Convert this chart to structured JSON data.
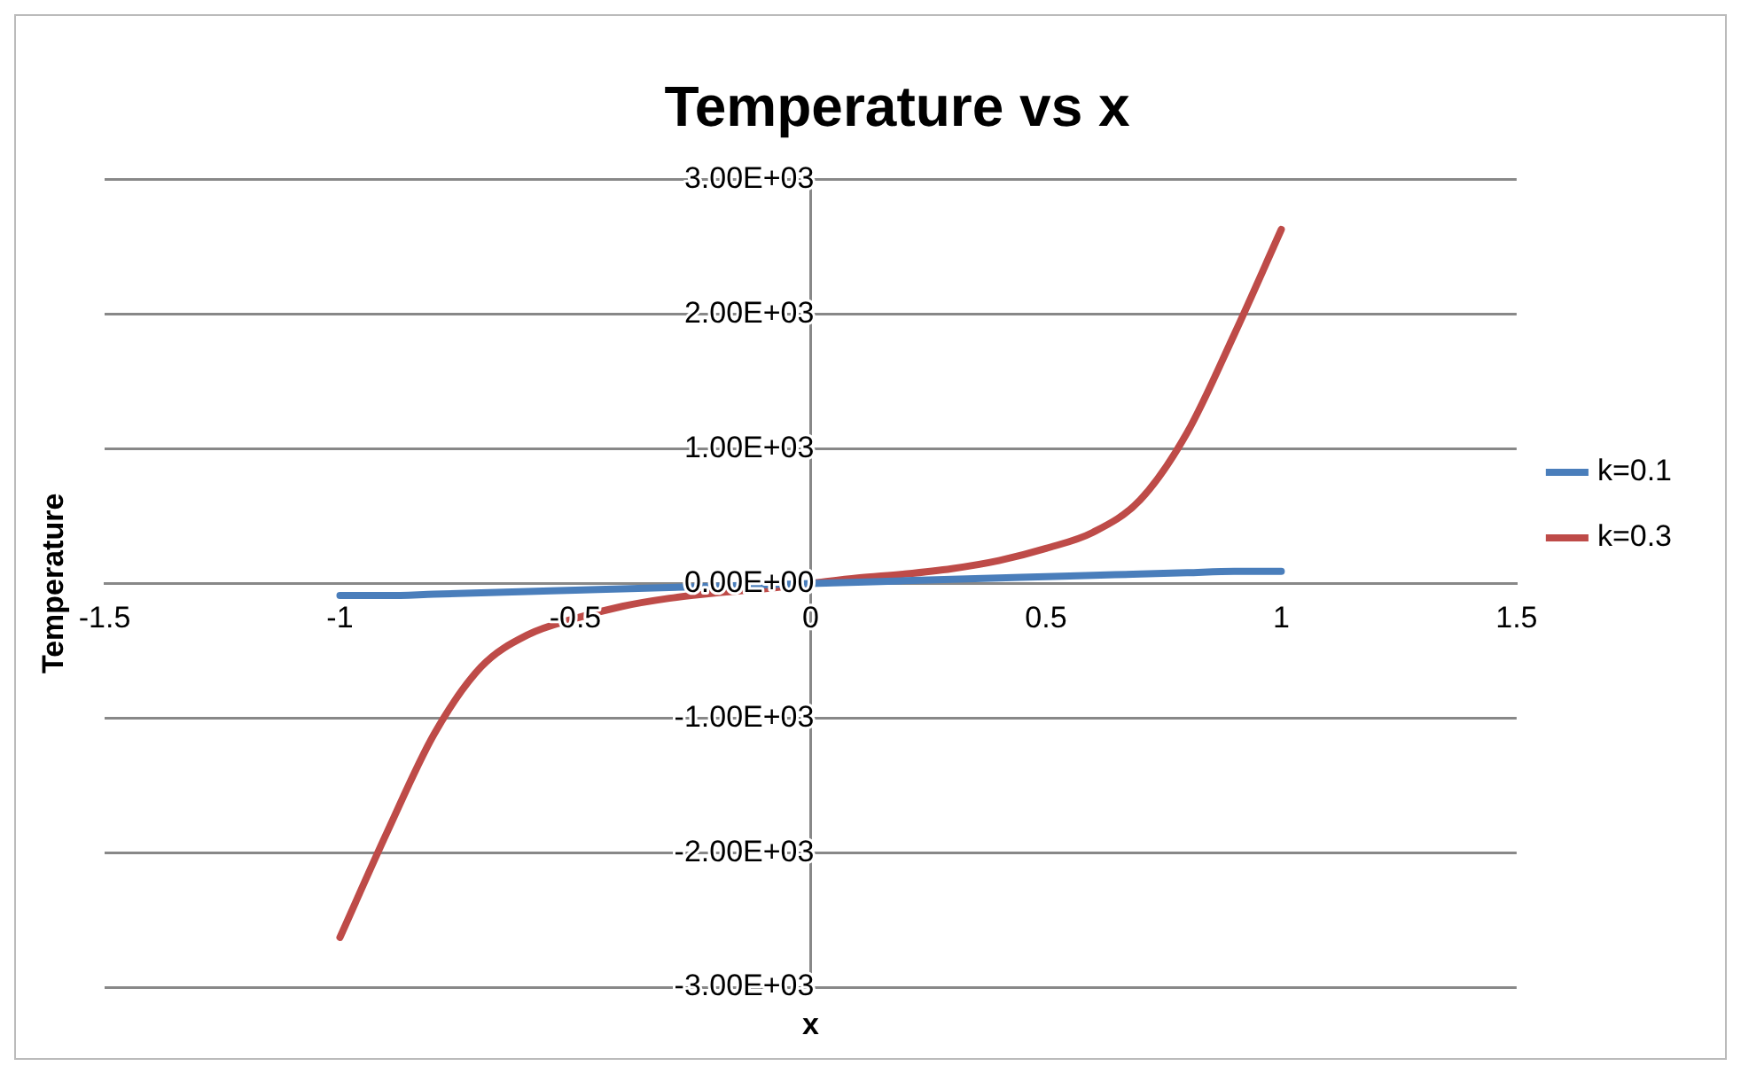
{
  "chart_data": {
    "type": "line",
    "title": "Temperature vs x",
    "xlabel": "x",
    "ylabel": "Temperature",
    "x": [
      -1,
      -0.9,
      -0.8,
      -0.7,
      -0.6,
      -0.5,
      -0.4,
      -0.3,
      -0.2,
      -0.1,
      0,
      0.1,
      0.2,
      0.3,
      0.4,
      0.5,
      0.6,
      0.7,
      0.8,
      0.9,
      1
    ],
    "series": [
      {
        "name": "k=0.1",
        "color": "#4a7ebb",
        "values": [
          -90,
          -90,
          -80,
          -70,
          -60,
          -50,
          -40,
          -30,
          -20,
          -10,
          0,
          10,
          20,
          30,
          40,
          50,
          60,
          70,
          80,
          90,
          90
        ]
      },
      {
        "name": "k=0.3",
        "color": "#be4b48",
        "values": [
          -2630,
          -1850,
          -1120,
          -620,
          -380,
          -260,
          -170,
          -110,
          -70,
          -40,
          0,
          40,
          70,
          110,
          170,
          260,
          380,
          620,
          1120,
          1850,
          2630
        ]
      }
    ],
    "xlim": [
      -1.5,
      1.5
    ],
    "xticks": [
      -1.5,
      -1,
      -0.5,
      0,
      0.5,
      1,
      1.5
    ],
    "ylim": [
      -3000,
      3000
    ],
    "yticks": [
      {
        "value": -3000,
        "label": "-3.00E+03"
      },
      {
        "value": -2000,
        "label": "-2.00E+03"
      },
      {
        "value": -1000,
        "label": "-1.00E+03"
      },
      {
        "value": 0,
        "label": "0.00E+00"
      },
      {
        "value": 1000,
        "label": "1.00E+03"
      },
      {
        "value": 2000,
        "label": "2.00E+03"
      },
      {
        "value": 3000,
        "label": "3.00E+03"
      }
    ],
    "grid": "y",
    "legend": "right",
    "marker": "none",
    "line_style": "solid"
  }
}
